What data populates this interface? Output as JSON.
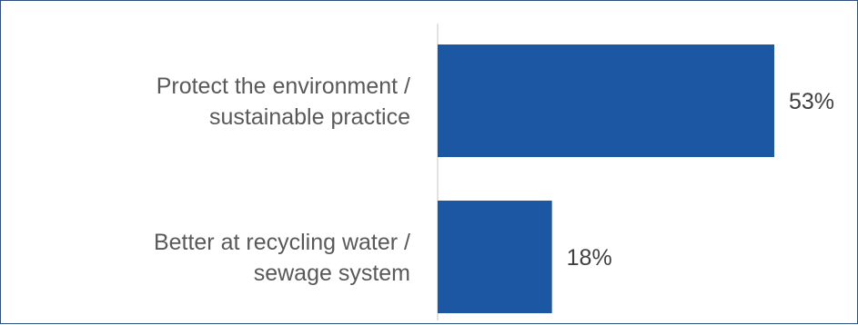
{
  "chart_data": {
    "type": "bar",
    "orientation": "horizontal",
    "categories": [
      [
        "Protect the environment /",
        "sustainable practice"
      ],
      [
        "Better at recycling water /",
        "sewage system"
      ]
    ],
    "values": [
      53,
      18
    ],
    "value_labels": [
      "53%",
      "18%"
    ],
    "title": "",
    "xlabel": "",
    "ylabel": "",
    "xlim": [
      0,
      65
    ],
    "grid": false,
    "legend": "none",
    "bar_color": "#1b57a3",
    "axis_color": "#d9d9d9",
    "border_color": "#2f4f7f"
  }
}
